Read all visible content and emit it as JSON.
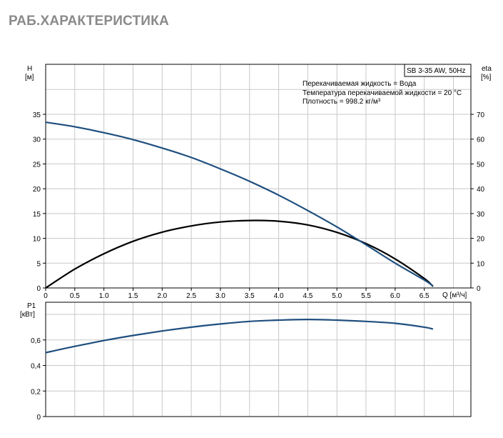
{
  "page_title": "РАБ.ХАРАКТЕРИСТИКА",
  "legend": {
    "model_label": "SB 3-35 AW, 50Hz",
    "info_lines": [
      "Перекачиваемая жидкость = Вода",
      "Температура перекачиваемой жидкости = 20 °C",
      "Плотность = 998.2 кг/м³"
    ]
  },
  "colors": {
    "head_curve": "#1f4f7f",
    "eta_curve": "#000000",
    "power_curve": "#1f4f7f",
    "title": "#8a8a8a"
  },
  "chart_data": [
    {
      "type": "line",
      "panel": "top",
      "xlabel": "Q [м³/ч]",
      "ylabel_left": "H",
      "ylabel_left_unit": "[м]",
      "ylabel_right": "eta",
      "ylabel_right_unit": "[%]",
      "x_ticks": [
        "0",
        "0.5",
        "1.0",
        "1.5",
        "2.0",
        "2.5",
        "3.0",
        "3.5",
        "4.0",
        "4.5",
        "5.0",
        "5.5",
        "6.0",
        "6.5"
      ],
      "y_left_ticks": [
        "0",
        "5",
        "10",
        "15",
        "20",
        "25",
        "30",
        "35"
      ],
      "y_right_ticks": [
        "0",
        "10",
        "20",
        "30",
        "40",
        "50",
        "60",
        "70"
      ],
      "xlim": [
        0,
        7.3
      ],
      "ylim_left": [
        0,
        35
      ],
      "ylim_right": [
        0,
        70
      ],
      "grid": true,
      "series": [
        {
          "axis": "left",
          "x": [
            0,
            0.5,
            1.0,
            1.5,
            2.0,
            2.5,
            3.0,
            3.5,
            4.0,
            4.5,
            5.0,
            5.5,
            6.0,
            6.5,
            6.65
          ],
          "y": [
            33.4,
            32.5,
            31.3,
            29.9,
            28.2,
            26.3,
            24.0,
            21.5,
            18.7,
            15.6,
            12.3,
            8.7,
            5.0,
            1.6,
            0.4
          ]
        },
        {
          "axis": "right",
          "x": [
            0,
            0.5,
            1.0,
            1.5,
            2.0,
            2.5,
            3.0,
            3.5,
            4.0,
            4.5,
            5.0,
            5.5,
            6.0,
            6.5,
            6.65
          ],
          "y": [
            0,
            7.6,
            13.8,
            18.8,
            22.5,
            25.0,
            26.6,
            27.2,
            26.9,
            25.4,
            22.4,
            17.9,
            11.7,
            3.8,
            0.6
          ]
        }
      ]
    },
    {
      "type": "line",
      "panel": "bottom",
      "ylabel": "P1",
      "ylabel_unit": "[кВт]",
      "y_ticks": [
        "0",
        "0,2",
        "0,4",
        "0,6"
      ],
      "ylim": [
        0,
        0.8
      ],
      "xlim": [
        0,
        7.3
      ],
      "grid": true,
      "series": [
        {
          "x": [
            0,
            0.5,
            1.0,
            1.5,
            2.0,
            2.5,
            3.0,
            3.5,
            4.0,
            4.5,
            5.0,
            5.5,
            6.0,
            6.5,
            6.65
          ],
          "y": [
            0.5,
            0.55,
            0.595,
            0.635,
            0.67,
            0.7,
            0.725,
            0.745,
            0.755,
            0.76,
            0.755,
            0.745,
            0.73,
            0.7,
            0.685
          ]
        }
      ]
    }
  ]
}
